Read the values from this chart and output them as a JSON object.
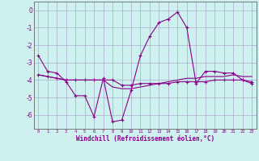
{
  "xlabel": "Windchill (Refroidissement éolien,°C)",
  "bg_color": "#cef0ee",
  "grid_color": "#aaaacc",
  "line_color": "#880088",
  "hours": [
    0,
    1,
    2,
    3,
    4,
    5,
    6,
    7,
    8,
    9,
    10,
    11,
    12,
    13,
    14,
    15,
    16,
    17,
    18,
    19,
    20,
    21,
    22,
    23
  ],
  "series1": [
    -2.6,
    -3.5,
    -3.6,
    -4.1,
    -4.9,
    -4.9,
    -6.1,
    -3.9,
    -6.4,
    -6.3,
    -4.6,
    -2.6,
    -1.5,
    -0.7,
    -0.5,
    -0.1,
    -1.0,
    -4.2,
    -3.5,
    -3.5,
    -3.6,
    -3.6,
    -4.0,
    -4.2
  ],
  "series2": [
    -3.7,
    -3.8,
    -3.9,
    -4.0,
    -4.0,
    -4.0,
    -4.0,
    -4.0,
    -4.0,
    -4.3,
    -4.3,
    -4.2,
    -4.2,
    -4.2,
    -4.2,
    -4.1,
    -4.1,
    -4.1,
    -4.1,
    -4.0,
    -4.0,
    -4.0,
    -4.0,
    -4.1
  ],
  "series3": [
    -3.7,
    -3.8,
    -3.9,
    -4.0,
    -4.0,
    -4.0,
    -4.0,
    -4.0,
    -4.4,
    -4.5,
    -4.5,
    -4.4,
    -4.3,
    -4.2,
    -4.1,
    -4.0,
    -3.9,
    -3.9,
    -3.8,
    -3.8,
    -3.8,
    -3.7,
    -3.8,
    -3.8
  ],
  "ylim": [
    -6.8,
    0.5
  ],
  "yticks": [
    0,
    -1,
    -2,
    -3,
    -4,
    -5,
    -6
  ]
}
